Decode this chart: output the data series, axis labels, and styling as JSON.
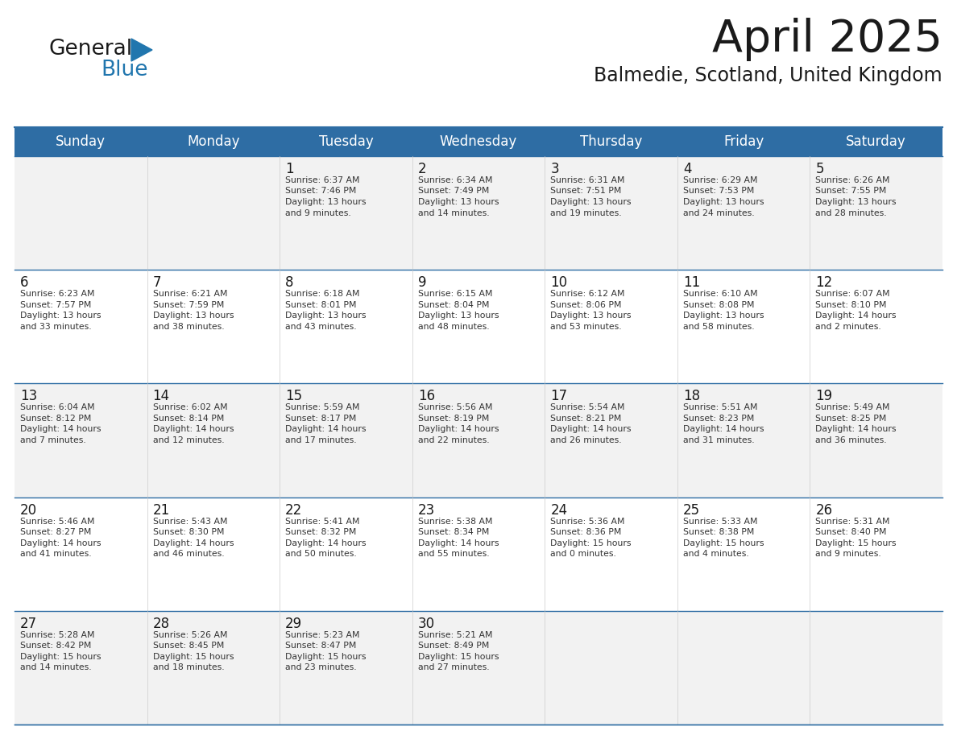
{
  "title": "April 2025",
  "subtitle": "Balmedie, Scotland, United Kingdom",
  "header_bg_color": "#2E6DA4",
  "header_text_color": "#FFFFFF",
  "cell_bg_color_0": "#F2F2F2",
  "cell_bg_color_1": "#FFFFFF",
  "cell_border_color": "#2E6DA4",
  "cell_divider_color": "#CCCCCC",
  "title_color": "#1A1A1A",
  "subtitle_color": "#1A1A1A",
  "number_color": "#1A1A1A",
  "text_color": "#333333",
  "logo_general_color": "#1A1A1A",
  "logo_blue_color": "#2176AE",
  "day_headers": [
    "Sunday",
    "Monday",
    "Tuesday",
    "Wednesday",
    "Thursday",
    "Friday",
    "Saturday"
  ],
  "weeks": [
    [
      {
        "day": "",
        "lines": []
      },
      {
        "day": "",
        "lines": []
      },
      {
        "day": "1",
        "lines": [
          "Sunrise: 6:37 AM",
          "Sunset: 7:46 PM",
          "Daylight: 13 hours",
          "and 9 minutes."
        ]
      },
      {
        "day": "2",
        "lines": [
          "Sunrise: 6:34 AM",
          "Sunset: 7:49 PM",
          "Daylight: 13 hours",
          "and 14 minutes."
        ]
      },
      {
        "day": "3",
        "lines": [
          "Sunrise: 6:31 AM",
          "Sunset: 7:51 PM",
          "Daylight: 13 hours",
          "and 19 minutes."
        ]
      },
      {
        "day": "4",
        "lines": [
          "Sunrise: 6:29 AM",
          "Sunset: 7:53 PM",
          "Daylight: 13 hours",
          "and 24 minutes."
        ]
      },
      {
        "day": "5",
        "lines": [
          "Sunrise: 6:26 AM",
          "Sunset: 7:55 PM",
          "Daylight: 13 hours",
          "and 28 minutes."
        ]
      }
    ],
    [
      {
        "day": "6",
        "lines": [
          "Sunrise: 6:23 AM",
          "Sunset: 7:57 PM",
          "Daylight: 13 hours",
          "and 33 minutes."
        ]
      },
      {
        "day": "7",
        "lines": [
          "Sunrise: 6:21 AM",
          "Sunset: 7:59 PM",
          "Daylight: 13 hours",
          "and 38 minutes."
        ]
      },
      {
        "day": "8",
        "lines": [
          "Sunrise: 6:18 AM",
          "Sunset: 8:01 PM",
          "Daylight: 13 hours",
          "and 43 minutes."
        ]
      },
      {
        "day": "9",
        "lines": [
          "Sunrise: 6:15 AM",
          "Sunset: 8:04 PM",
          "Daylight: 13 hours",
          "and 48 minutes."
        ]
      },
      {
        "day": "10",
        "lines": [
          "Sunrise: 6:12 AM",
          "Sunset: 8:06 PM",
          "Daylight: 13 hours",
          "and 53 minutes."
        ]
      },
      {
        "day": "11",
        "lines": [
          "Sunrise: 6:10 AM",
          "Sunset: 8:08 PM",
          "Daylight: 13 hours",
          "and 58 minutes."
        ]
      },
      {
        "day": "12",
        "lines": [
          "Sunrise: 6:07 AM",
          "Sunset: 8:10 PM",
          "Daylight: 14 hours",
          "and 2 minutes."
        ]
      }
    ],
    [
      {
        "day": "13",
        "lines": [
          "Sunrise: 6:04 AM",
          "Sunset: 8:12 PM",
          "Daylight: 14 hours",
          "and 7 minutes."
        ]
      },
      {
        "day": "14",
        "lines": [
          "Sunrise: 6:02 AM",
          "Sunset: 8:14 PM",
          "Daylight: 14 hours",
          "and 12 minutes."
        ]
      },
      {
        "day": "15",
        "lines": [
          "Sunrise: 5:59 AM",
          "Sunset: 8:17 PM",
          "Daylight: 14 hours",
          "and 17 minutes."
        ]
      },
      {
        "day": "16",
        "lines": [
          "Sunrise: 5:56 AM",
          "Sunset: 8:19 PM",
          "Daylight: 14 hours",
          "and 22 minutes."
        ]
      },
      {
        "day": "17",
        "lines": [
          "Sunrise: 5:54 AM",
          "Sunset: 8:21 PM",
          "Daylight: 14 hours",
          "and 26 minutes."
        ]
      },
      {
        "day": "18",
        "lines": [
          "Sunrise: 5:51 AM",
          "Sunset: 8:23 PM",
          "Daylight: 14 hours",
          "and 31 minutes."
        ]
      },
      {
        "day": "19",
        "lines": [
          "Sunrise: 5:49 AM",
          "Sunset: 8:25 PM",
          "Daylight: 14 hours",
          "and 36 minutes."
        ]
      }
    ],
    [
      {
        "day": "20",
        "lines": [
          "Sunrise: 5:46 AM",
          "Sunset: 8:27 PM",
          "Daylight: 14 hours",
          "and 41 minutes."
        ]
      },
      {
        "day": "21",
        "lines": [
          "Sunrise: 5:43 AM",
          "Sunset: 8:30 PM",
          "Daylight: 14 hours",
          "and 46 minutes."
        ]
      },
      {
        "day": "22",
        "lines": [
          "Sunrise: 5:41 AM",
          "Sunset: 8:32 PM",
          "Daylight: 14 hours",
          "and 50 minutes."
        ]
      },
      {
        "day": "23",
        "lines": [
          "Sunrise: 5:38 AM",
          "Sunset: 8:34 PM",
          "Daylight: 14 hours",
          "and 55 minutes."
        ]
      },
      {
        "day": "24",
        "lines": [
          "Sunrise: 5:36 AM",
          "Sunset: 8:36 PM",
          "Daylight: 15 hours",
          "and 0 minutes."
        ]
      },
      {
        "day": "25",
        "lines": [
          "Sunrise: 5:33 AM",
          "Sunset: 8:38 PM",
          "Daylight: 15 hours",
          "and 4 minutes."
        ]
      },
      {
        "day": "26",
        "lines": [
          "Sunrise: 5:31 AM",
          "Sunset: 8:40 PM",
          "Daylight: 15 hours",
          "and 9 minutes."
        ]
      }
    ],
    [
      {
        "day": "27",
        "lines": [
          "Sunrise: 5:28 AM",
          "Sunset: 8:42 PM",
          "Daylight: 15 hours",
          "and 14 minutes."
        ]
      },
      {
        "day": "28",
        "lines": [
          "Sunrise: 5:26 AM",
          "Sunset: 8:45 PM",
          "Daylight: 15 hours",
          "and 18 minutes."
        ]
      },
      {
        "day": "29",
        "lines": [
          "Sunrise: 5:23 AM",
          "Sunset: 8:47 PM",
          "Daylight: 15 hours",
          "and 23 minutes."
        ]
      },
      {
        "day": "30",
        "lines": [
          "Sunrise: 5:21 AM",
          "Sunset: 8:49 PM",
          "Daylight: 15 hours",
          "and 27 minutes."
        ]
      },
      {
        "day": "",
        "lines": []
      },
      {
        "day": "",
        "lines": []
      },
      {
        "day": "",
        "lines": []
      }
    ]
  ]
}
